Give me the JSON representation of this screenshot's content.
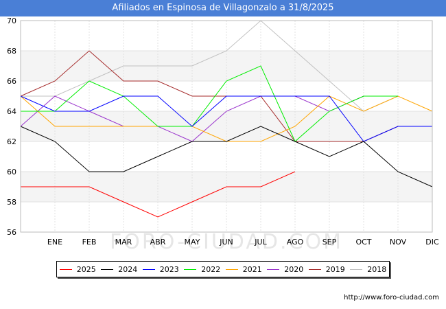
{
  "title": "Afiliados en Espinosa de Villagonzalo a 31/8/2025",
  "source": "http://www.foro-ciudad.com",
  "watermark": "FORO-CIUDAD.COM",
  "chart_data": {
    "type": "line",
    "title": "Afiliados en Espinosa de Villagonzalo a 31/8/2025",
    "categories": [
      "",
      "ENE",
      "FEB",
      "MAR",
      "ABR",
      "MAY",
      "JUN",
      "JUL",
      "AGO",
      "SEP",
      "OCT",
      "NOV",
      "DIC"
    ],
    "ylim": [
      56,
      70
    ],
    "yticks": [
      56,
      58,
      60,
      62,
      64,
      66,
      68,
      70
    ],
    "grid": true,
    "legend": "bottom",
    "series": [
      {
        "name": "2018",
        "color": "#c0c0c0",
        "values": [
          65,
          65,
          66,
          67,
          67,
          67,
          68,
          70,
          68,
          66,
          64,
          65,
          null
        ]
      },
      {
        "name": "2019",
        "color": "#a52a2a",
        "values": [
          65,
          66,
          68,
          66,
          66,
          65,
          65,
          65,
          62,
          62,
          62,
          63,
          63
        ]
      },
      {
        "name": "2020",
        "color": "#9932cc",
        "values": [
          63,
          65,
          64,
          63,
          63,
          62,
          64,
          65,
          65,
          64,
          65,
          65,
          null
        ]
      },
      {
        "name": "2021",
        "color": "#ffa500",
        "values": [
          65,
          63,
          63,
          63,
          63,
          63,
          62,
          62,
          63,
          65,
          64,
          65,
          64
        ]
      },
      {
        "name": "2022",
        "color": "#00ee00",
        "values": [
          64,
          64,
          66,
          65,
          63,
          63,
          66,
          67,
          62,
          64,
          65,
          65,
          null
        ]
      },
      {
        "name": "2023",
        "color": "#0000ff",
        "values": [
          65,
          64,
          64,
          65,
          65,
          63,
          65,
          65,
          65,
          65,
          62,
          63,
          63
        ]
      },
      {
        "name": "2024",
        "color": "#000000",
        "values": [
          63,
          62,
          60,
          60,
          61,
          62,
          62,
          63,
          62,
          61,
          62,
          60,
          59
        ]
      },
      {
        "name": "2025",
        "color": "#ff0000",
        "values": [
          59,
          59,
          59,
          58,
          57,
          58,
          59,
          59,
          60,
          null,
          null,
          null,
          null
        ]
      }
    ],
    "legend_order": [
      "2025",
      "2024",
      "2023",
      "2022",
      "2021",
      "2020",
      "2019",
      "2018"
    ]
  }
}
